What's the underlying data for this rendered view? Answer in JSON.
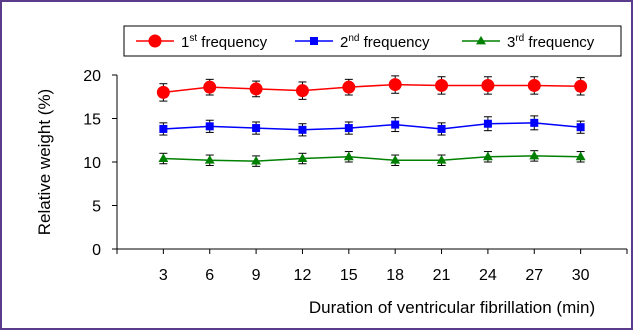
{
  "chart_data": {
    "type": "line",
    "x": [
      3,
      6,
      9,
      12,
      15,
      18,
      21,
      24,
      27,
      30
    ],
    "series": [
      {
        "name": "1st frequency",
        "name_base": "1",
        "name_sup": "st",
        "name_rest": " frequency",
        "color": "#ff0000",
        "marker": "circle",
        "values": [
          18.0,
          18.6,
          18.4,
          18.2,
          18.6,
          18.9,
          18.8,
          18.8,
          18.8,
          18.7
        ],
        "errors": [
          1.0,
          0.9,
          0.9,
          1.0,
          0.9,
          1.0,
          1.0,
          1.0,
          1.0,
          1.0
        ]
      },
      {
        "name": "2nd frequency",
        "name_base": "2",
        "name_sup": "nd",
        "name_rest": " frequency",
        "color": "#0000ff",
        "marker": "square",
        "values": [
          13.8,
          14.1,
          13.9,
          13.7,
          13.9,
          14.3,
          13.8,
          14.4,
          14.5,
          14.0
        ],
        "errors": [
          0.7,
          0.7,
          0.7,
          0.7,
          0.7,
          0.8,
          0.7,
          0.8,
          0.8,
          0.7
        ]
      },
      {
        "name": "3rd frequency",
        "name_base": "3",
        "name_sup": "rd",
        "name_rest": " frequency",
        "color": "#008000",
        "marker": "triangle",
        "values": [
          10.4,
          10.2,
          10.1,
          10.4,
          10.6,
          10.2,
          10.2,
          10.6,
          10.7,
          10.6
        ],
        "errors": [
          0.6,
          0.6,
          0.6,
          0.6,
          0.6,
          0.6,
          0.6,
          0.6,
          0.6,
          0.6
        ]
      }
    ],
    "xlabel": "Duration of ventricular fibrillation (min)",
    "ylabel": "Relative weight (%)",
    "ylim": [
      0,
      20
    ],
    "yticks": [
      0,
      5,
      10,
      15,
      20
    ],
    "xticks": [
      3,
      6,
      9,
      12,
      15,
      18,
      21,
      24,
      27,
      30
    ],
    "legend_position": "top-right",
    "grid": false
  }
}
